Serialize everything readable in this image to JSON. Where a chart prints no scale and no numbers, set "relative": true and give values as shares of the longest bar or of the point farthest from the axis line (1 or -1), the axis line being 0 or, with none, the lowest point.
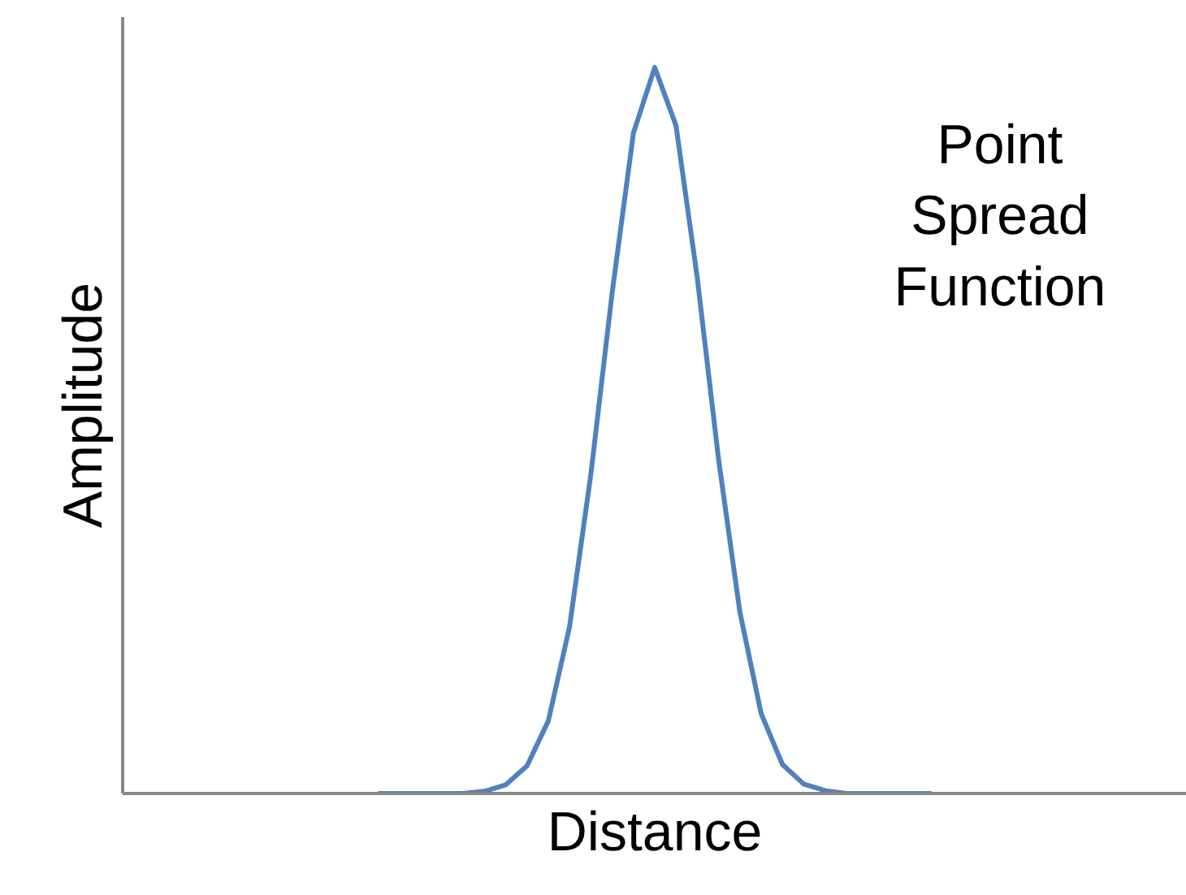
{
  "chart_data": {
    "type": "line",
    "relative": true,
    "xlabel": "Distance",
    "ylabel": "Amplitude",
    "annotations": [
      "Point Spread Function"
    ],
    "categories": [
      null,
      null,
      null,
      null,
      null,
      null,
      null,
      null,
      null,
      null,
      null,
      null,
      null,
      null,
      null,
      null,
      null,
      null,
      null,
      null,
      null,
      null,
      null,
      null,
      null,
      null,
      null,
      null,
      null,
      null,
      null,
      null,
      null,
      null,
      null,
      null,
      null,
      null,
      null,
      null,
      null,
      null,
      null,
      null,
      null,
      null,
      null,
      null,
      null,
      null,
      null
    ],
    "series": [
      {
        "color": "#4f81bd",
        "values": [
          null,
          null,
          null,
          null,
          null,
          null,
          null,
          null,
          null,
          null,
          null,
          null,
          0,
          0,
          0,
          0,
          0,
          0.003,
          0.012,
          0.038,
          0.1,
          0.23,
          0.44,
          0.69,
          0.91,
          1,
          0.92,
          0.71,
          0.46,
          0.25,
          0.11,
          0.04,
          0.013,
          0.004,
          0,
          0,
          0,
          0,
          0,
          null,
          null,
          null,
          null,
          null,
          null,
          null,
          null,
          null,
          null,
          null,
          null
        ]
      }
    ],
    "marker": "none",
    "line_style": "solid"
  }
}
